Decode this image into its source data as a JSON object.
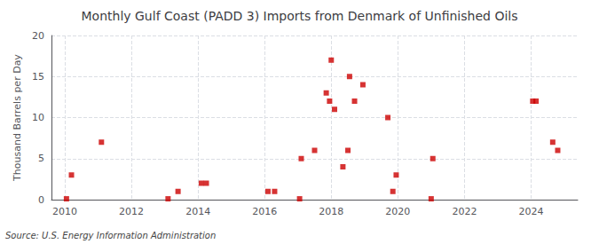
{
  "chart_data": {
    "type": "scatter",
    "title": "Monthly Gulf Coast (PADD 3) Imports from Denmark of Unfinished Oils",
    "ylabel": "Thousand Barrels per Day",
    "source": "Source: U.S. Energy Information Administration",
    "color": "#cc0000",
    "marker": "square",
    "grid": true,
    "xlim": [
      2009.6,
      2025.4
    ],
    "ylim": [
      0,
      20
    ],
    "xticks": [
      2010,
      2012,
      2014,
      2016,
      2018,
      2020,
      2022,
      2024
    ],
    "yticks": [
      0,
      5,
      10,
      15,
      20
    ],
    "x": [
      2010.05,
      2010.2,
      2011.1,
      2013.1,
      2013.4,
      2014.1,
      2014.25,
      2016.1,
      2016.3,
      2017.05,
      2017.1,
      2017.5,
      2017.85,
      2017.95,
      2018.0,
      2018.1,
      2018.35,
      2018.5,
      2018.55,
      2018.7,
      2018.95,
      2019.7,
      2019.85,
      2019.95,
      2021.0,
      2021.05,
      2024.05,
      2024.15,
      2024.65,
      2024.8
    ],
    "values": [
      0.1,
      3.0,
      7.0,
      0.1,
      1.0,
      2.0,
      2.0,
      1.0,
      1.0,
      0.1,
      5.0,
      6.0,
      13.0,
      12.0,
      17.0,
      11.0,
      4.0,
      6.0,
      15.0,
      12.0,
      14.0,
      10.0,
      1.0,
      3.0,
      0.1,
      5.0,
      12.0,
      12.0,
      7.0,
      6.0
    ]
  }
}
